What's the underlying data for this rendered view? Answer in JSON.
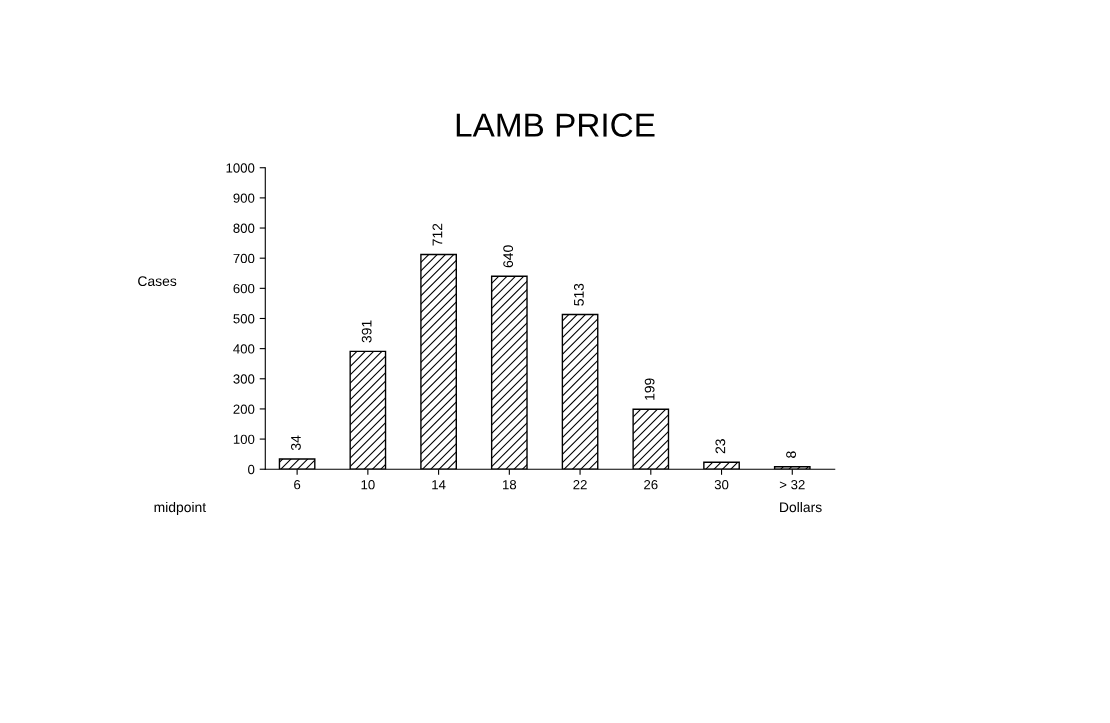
{
  "chart_data": {
    "type": "bar",
    "title": "LAMB PRICE",
    "ylabel": "Cases",
    "xlabel": "Dollars",
    "annotations": [
      "midpoint"
    ],
    "categories": [
      "6",
      "10",
      "14",
      "18",
      "22",
      "26",
      "30",
      "> 32"
    ],
    "values": [
      34,
      391,
      712,
      640,
      513,
      199,
      23,
      8
    ],
    "color": "#000000",
    "ylim": [
      0,
      1000
    ],
    "yticks": [
      0,
      100,
      200,
      300,
      400,
      500,
      600,
      700,
      800,
      900,
      1000
    ],
    "data_labels": true,
    "grid": false,
    "legend": false
  }
}
